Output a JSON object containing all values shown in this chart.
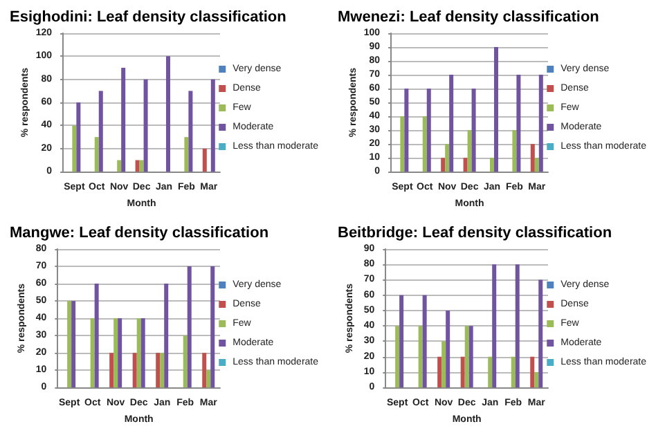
{
  "chart_data": [
    {
      "type": "bar",
      "title": "Esighodini: Leaf density classification",
      "xlabel": "Month",
      "ylabel": "% respondents",
      "categories": [
        "Sept",
        "Oct",
        "Nov",
        "Dec",
        "Jan",
        "Feb",
        "Mar"
      ],
      "ylim": [
        0,
        120
      ],
      "yticks": [
        0,
        20,
        40,
        60,
        80,
        100,
        120
      ],
      "grid": "y",
      "legend": "right",
      "series": [
        {
          "name": "Very dense",
          "color": "#4f81bd",
          "values": [
            0,
            0,
            0,
            0,
            0,
            0,
            0
          ]
        },
        {
          "name": "Dense",
          "color": "#c0504d",
          "values": [
            0,
            0,
            0,
            10,
            0,
            0,
            20
          ]
        },
        {
          "name": "Few",
          "color": "#9bbb59",
          "values": [
            40,
            30,
            10,
            10,
            0,
            30,
            0
          ]
        },
        {
          "name": "Moderate",
          "color": "#7054a0",
          "values": [
            60,
            70,
            90,
            80,
            100,
            70,
            80
          ]
        },
        {
          "name": "Less than moderate",
          "color": "#4bacc6",
          "values": [
            0,
            0,
            0,
            0,
            0,
            0,
            0
          ]
        }
      ]
    },
    {
      "type": "bar",
      "title": "Mwenezi: Leaf density classification",
      "xlabel": "Month",
      "ylabel": "% respondents",
      "categories": [
        "Sept",
        "Oct",
        "Nov",
        "Dec",
        "Jan",
        "Feb",
        "Mar"
      ],
      "ylim": [
        0,
        100
      ],
      "yticks": [
        0,
        10,
        20,
        30,
        40,
        50,
        60,
        70,
        80,
        90,
        100
      ],
      "grid": "y",
      "legend": "right",
      "series": [
        {
          "name": "Very dense",
          "color": "#4f81bd",
          "values": [
            0,
            0,
            0,
            0,
            0,
            0,
            0
          ]
        },
        {
          "name": "Dense",
          "color": "#c0504d",
          "values": [
            0,
            0,
            10,
            10,
            0,
            0,
            20
          ]
        },
        {
          "name": "Few",
          "color": "#9bbb59",
          "values": [
            40,
            40,
            20,
            30,
            10,
            30,
            10
          ]
        },
        {
          "name": "Moderate",
          "color": "#7054a0",
          "values": [
            60,
            60,
            70,
            60,
            90,
            70,
            70
          ]
        },
        {
          "name": "Less than moderate",
          "color": "#4bacc6",
          "values": [
            0,
            0,
            0,
            0,
            0,
            0,
            0
          ]
        }
      ]
    },
    {
      "type": "bar",
      "title": "Mangwe: Leaf density classification",
      "xlabel": "Month",
      "ylabel": "% respondents",
      "categories": [
        "Sept",
        "Oct",
        "Nov",
        "Dec",
        "Jan",
        "Feb",
        "Mar"
      ],
      "ylim": [
        0,
        80
      ],
      "yticks": [
        0,
        10,
        20,
        30,
        40,
        50,
        60,
        70,
        80
      ],
      "grid": "y",
      "legend": "right",
      "series": [
        {
          "name": "Very dense",
          "color": "#4f81bd",
          "values": [
            0,
            0,
            0,
            0,
            0,
            0,
            0
          ]
        },
        {
          "name": "Dense",
          "color": "#c0504d",
          "values": [
            0,
            0,
            20,
            20,
            20,
            0,
            20
          ]
        },
        {
          "name": "Few",
          "color": "#9bbb59",
          "values": [
            50,
            40,
            40,
            40,
            20,
            30,
            10
          ]
        },
        {
          "name": "Moderate",
          "color": "#7054a0",
          "values": [
            50,
            60,
            40,
            40,
            60,
            70,
            70
          ]
        },
        {
          "name": "Less than moderate",
          "color": "#4bacc6",
          "values": [
            0,
            0,
            0,
            0,
            0,
            0,
            0
          ]
        }
      ]
    },
    {
      "type": "bar",
      "title": "Beitbridge: Leaf density classification",
      "xlabel": "Month",
      "ylabel": "% respondents",
      "categories": [
        "Sept",
        "Oct",
        "Nov",
        "Dec",
        "Jan",
        "Feb",
        "Mar"
      ],
      "ylim": [
        0,
        90
      ],
      "yticks": [
        0,
        10,
        20,
        30,
        40,
        50,
        60,
        70,
        80,
        90
      ],
      "grid": "y",
      "legend": "right",
      "series": [
        {
          "name": "Very dense",
          "color": "#4f81bd",
          "values": [
            0,
            0,
            0,
            0,
            0,
            0,
            0
          ]
        },
        {
          "name": "Dense",
          "color": "#c0504d",
          "values": [
            0,
            0,
            20,
            20,
            0,
            0,
            20
          ]
        },
        {
          "name": "Few",
          "color": "#9bbb59",
          "values": [
            40,
            40,
            30,
            40,
            20,
            20,
            10
          ]
        },
        {
          "name": "Moderate",
          "color": "#7054a0",
          "values": [
            60,
            60,
            50,
            40,
            80,
            80,
            70
          ]
        },
        {
          "name": "Less than moderate",
          "color": "#4bacc6",
          "values": [
            0,
            0,
            0,
            0,
            0,
            0,
            0
          ]
        }
      ]
    }
  ]
}
